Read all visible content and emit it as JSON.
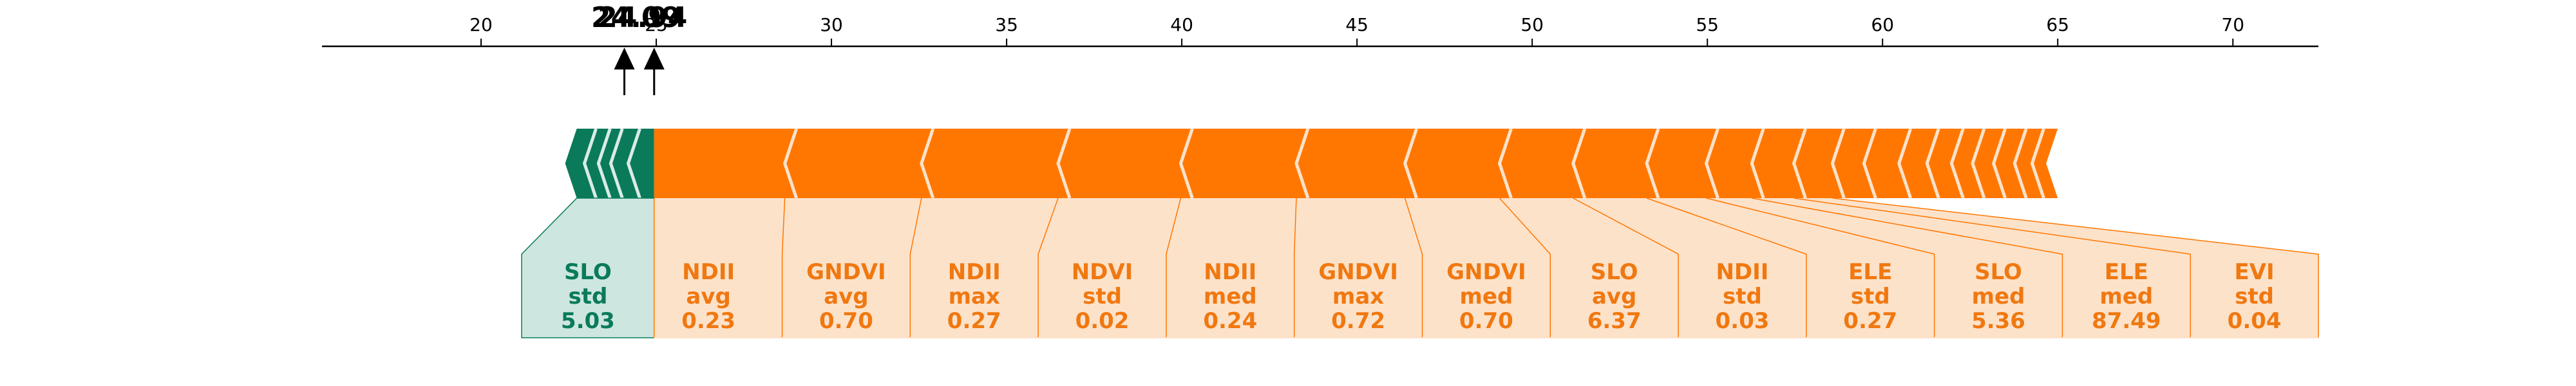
{
  "chart_data": {
    "type": "force_plot",
    "axis": {
      "ticks": [
        20,
        25,
        30,
        35,
        40,
        45,
        50,
        55,
        60,
        65,
        70
      ],
      "xlim": [
        15.46,
        72.44
      ]
    },
    "markers": [
      {
        "value": 24.94,
        "label": "24.94"
      },
      {
        "value": 24.09,
        "label": "24.09"
      }
    ],
    "negative_region": [
      22.4,
      24.94
    ],
    "positive_region": [
      24.94,
      65.0
    ],
    "negative_features": [
      {
        "name": "SLO",
        "stat": "std",
        "value": "5.03",
        "boundary": 22.4
      }
    ],
    "positive_features": [
      {
        "name": "NDII",
        "stat": "avg",
        "value": "0.23",
        "boundary": 29.0
      },
      {
        "name": "GNDVI",
        "stat": "avg",
        "value": "0.70",
        "boundary": 32.9
      },
      {
        "name": "NDII",
        "stat": "max",
        "value": "0.27",
        "boundary": 36.8
      },
      {
        "name": "NDVI",
        "stat": "std",
        "value": "0.02",
        "boundary": 40.3
      },
      {
        "name": "NDII",
        "stat": "med",
        "value": "0.24",
        "boundary": 43.6
      },
      {
        "name": "GNDVI",
        "stat": "max",
        "value": "0.72",
        "boundary": 46.7
      },
      {
        "name": "GNDVI",
        "stat": "med",
        "value": "0.70",
        "boundary": 49.4
      },
      {
        "name": "SLO",
        "stat": "avg",
        "value": "6.37",
        "boundary": 51.5
      },
      {
        "name": "NDII",
        "stat": "std",
        "value": "0.03",
        "boundary": 53.6
      },
      {
        "name": "ELE",
        "stat": "std",
        "value": "0.27",
        "boundary": 55.3
      },
      {
        "name": "SLO",
        "stat": "med",
        "value": "5.36",
        "boundary": 56.6
      },
      {
        "name": "ELE",
        "stat": "med",
        "value": "87.49",
        "boundary": 57.8
      },
      {
        "name": "EVI",
        "stat": "std",
        "value": "0.04",
        "boundary": 58.9
      }
    ],
    "minor_boundaries": [
      59.8,
      60.8,
      61.6,
      62.3,
      62.9,
      63.5,
      64.1,
      64.6
    ],
    "negative_minor_boundaries": [
      22.95,
      23.35,
      23.7,
      24.2
    ],
    "colors": {
      "positive": "#ff7700",
      "positive_light": "#fde2ca",
      "positive_text": "#f07810",
      "negative": "#0a7a5a",
      "negative_light": "#cde6df",
      "negative_text": "#0a7a5a"
    }
  }
}
